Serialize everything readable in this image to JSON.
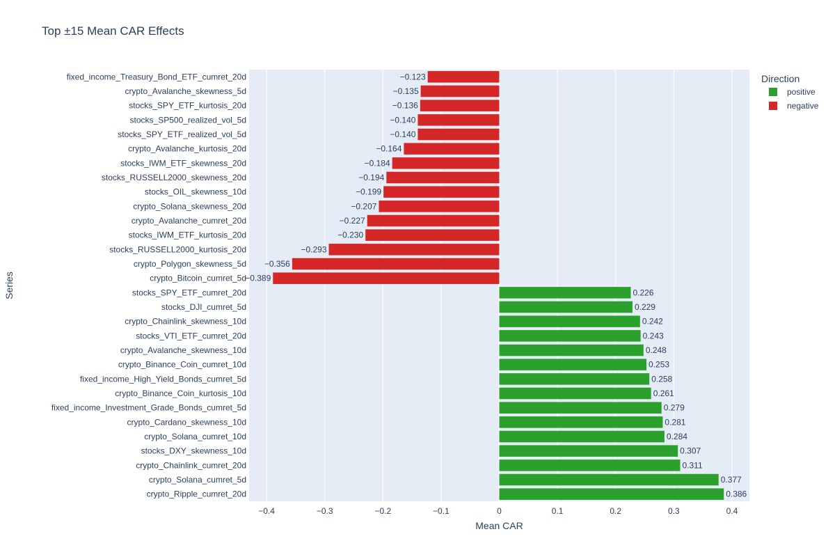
{
  "chart_data": {
    "type": "bar",
    "orientation": "horizontal",
    "title": "Top ±15 Mean CAR Effects",
    "xlabel": "Mean CAR",
    "ylabel": "Series",
    "xlim": [
      -0.43,
      0.43
    ],
    "xticks": [
      -0.4,
      -0.3,
      -0.2,
      -0.1,
      0,
      0.1,
      0.2,
      0.3,
      0.4
    ],
    "xtick_labels": [
      "−0.4",
      "−0.3",
      "−0.2",
      "−0.1",
      "0",
      "0.1",
      "0.2",
      "0.3",
      "0.4"
    ],
    "grid": true,
    "legend": {
      "title": "Direction",
      "placement": "top-right",
      "entries": [
        {
          "name": "positive",
          "color": "#2ca02c"
        },
        {
          "name": "negative",
          "color": "#d62728"
        }
      ]
    },
    "categories": [
      "fixed_income_Treasury_Bond_ETF_cumret_20d",
      "crypto_Avalanche_skewness_5d",
      "stocks_SPY_ETF_kurtosis_20d",
      "stocks_SP500_realized_vol_5d",
      "stocks_SPY_ETF_realized_vol_5d",
      "crypto_Avalanche_kurtosis_20d",
      "stocks_IWM_ETF_skewness_20d",
      "stocks_RUSSELL2000_skewness_20d",
      "stocks_OIL_skewness_10d",
      "crypto_Solana_skewness_20d",
      "crypto_Avalanche_cumret_20d",
      "stocks_IWM_ETF_kurtosis_20d",
      "stocks_RUSSELL2000_kurtosis_20d",
      "crypto_Polygon_skewness_5d",
      "crypto_Bitcoin_cumret_5d",
      "stocks_SPY_ETF_cumret_20d",
      "stocks_DJI_cumret_5d",
      "crypto_Chainlink_skewness_10d",
      "stocks_VTI_ETF_cumret_20d",
      "crypto_Avalanche_skewness_10d",
      "crypto_Binance_Coin_cumret_10d",
      "fixed_income_High_Yield_Bonds_cumret_5d",
      "crypto_Binance_Coin_kurtosis_10d",
      "fixed_income_Investment_Grade_Bonds_cumret_5d",
      "crypto_Cardano_skewness_10d",
      "crypto_Solana_cumret_10d",
      "stocks_DXY_skewness_10d",
      "crypto_Chainlink_cumret_20d",
      "crypto_Solana_cumret_5d",
      "crypto_Ripple_cumret_20d"
    ],
    "values": [
      -0.123,
      -0.135,
      -0.136,
      -0.14,
      -0.14,
      -0.164,
      -0.184,
      -0.194,
      -0.199,
      -0.207,
      -0.227,
      -0.23,
      -0.293,
      -0.356,
      -0.389,
      0.226,
      0.229,
      0.242,
      0.243,
      0.248,
      0.253,
      0.258,
      0.261,
      0.279,
      0.281,
      0.284,
      0.307,
      0.311,
      0.377,
      0.386
    ],
    "value_labels": [
      "−0.123",
      "−0.135",
      "−0.136",
      "−0.140",
      "−0.140",
      "−0.164",
      "−0.184",
      "−0.194",
      "−0.199",
      "−0.207",
      "−0.227",
      "−0.230",
      "−0.293",
      "−0.356",
      "−0.389",
      "0.226",
      "0.229",
      "0.242",
      "0.243",
      "0.248",
      "0.253",
      "0.258",
      "0.261",
      "0.279",
      "0.281",
      "0.284",
      "0.307",
      "0.311",
      "0.377",
      "0.386"
    ],
    "directions": [
      "negative",
      "negative",
      "negative",
      "negative",
      "negative",
      "negative",
      "negative",
      "negative",
      "negative",
      "negative",
      "negative",
      "negative",
      "negative",
      "negative",
      "negative",
      "positive",
      "positive",
      "positive",
      "positive",
      "positive",
      "positive",
      "positive",
      "positive",
      "positive",
      "positive",
      "positive",
      "positive",
      "positive",
      "positive",
      "positive"
    ],
    "colors": {
      "positive": "#2ca02c",
      "negative": "#d62728",
      "plot_bg": "#e5ecf6",
      "grid": "#ffffff"
    }
  }
}
